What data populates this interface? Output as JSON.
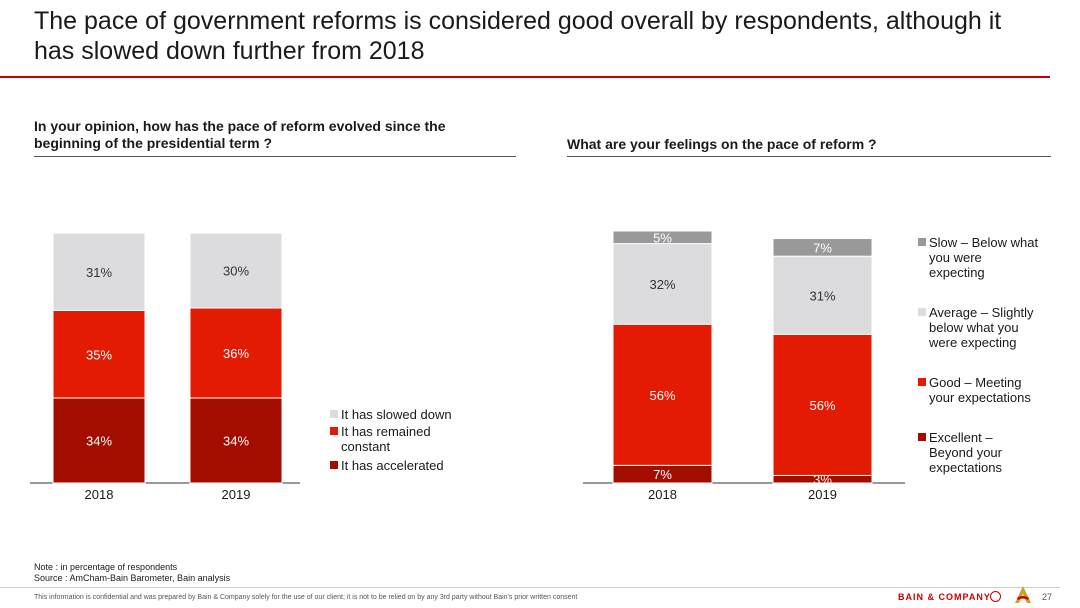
{
  "page": {
    "title": "The pace of government reforms is considered good overall by respondents, although it has slowed down further from 2018",
    "left_subhead": "In your opinion, how has the pace of reform evolved since the beginning of the presidential term ?",
    "right_subhead": "What are your feelings on the pace of reform ?",
    "note_line1": "Note : in percentage of respondents",
    "note_line2": "Source : AmCham-Bain Barometer, Bain analysis",
    "disclaimer": "This information is confidential and was prepared by Bain & Company solely for the use of our client; it is not to be relied on by any 3rd party without Bain's prior written consent",
    "brand": "BAIN & COMPANY",
    "page_number": "27"
  },
  "chart_data": [
    {
      "type": "bar",
      "stacked": true,
      "categories": [
        "2018",
        "2019"
      ],
      "series": [
        {
          "name": "It has accelerated",
          "values": [
            34,
            34
          ],
          "color": "#a30d00"
        },
        {
          "name": "It has remained constant",
          "values": [
            35,
            36
          ],
          "color": "#e31b02"
        },
        {
          "name": "It has slowed down",
          "values": [
            31,
            30
          ],
          "color": "#dcdcde"
        }
      ],
      "legend_position": "right",
      "ylim": [
        0,
        100
      ]
    },
    {
      "type": "bar",
      "stacked": true,
      "categories": [
        "2018",
        "2019"
      ],
      "series": [
        {
          "name": "Excellent – Beyond your expectations",
          "values": [
            7,
            3
          ],
          "color": "#a30d00"
        },
        {
          "name": "Good – Meeting your expectations",
          "values": [
            56,
            56
          ],
          "color": "#e31b02"
        },
        {
          "name": "Average – Slightly below what you were expecting",
          "values": [
            32,
            31
          ],
          "color": "#dcdcde"
        },
        {
          "name": "Slow – Below what you were expecting",
          "values": [
            5,
            7
          ],
          "color": "#999999"
        }
      ],
      "legend_position": "right",
      "ylim": [
        0,
        100
      ]
    }
  ]
}
